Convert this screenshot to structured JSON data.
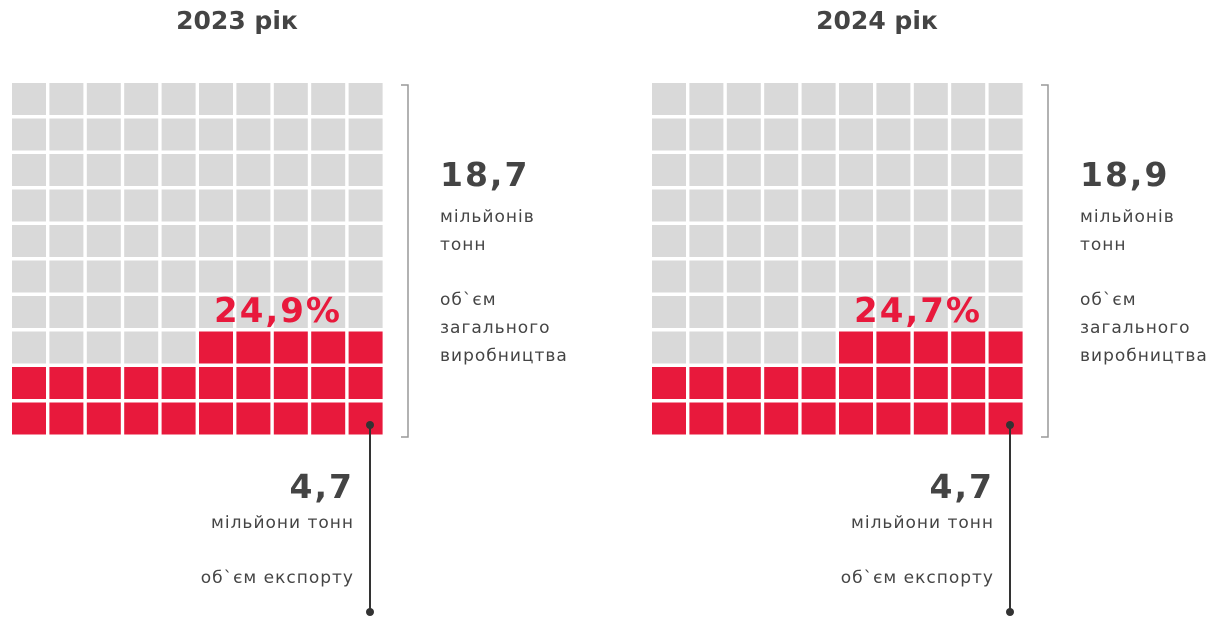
{
  "chart_data": [
    {
      "type": "waffle",
      "title": "2023 рік",
      "values": [
        24.9
      ],
      "value_labels": [
        "24,9%"
      ],
      "color": "#e8193c",
      "empty_color": "#d9d9d9",
      "total": "18,7",
      "total_unit": "мільйонів тонн",
      "total_caption": "об`єм загального виробництва",
      "export": "4,7",
      "export_unit": "мільйони тонн",
      "export_caption": "об`єм експорту"
    },
    {
      "type": "waffle",
      "title": "2024 рік",
      "values": [
        24.7
      ],
      "value_labels": [
        "24,7%"
      ],
      "color": "#e8193c",
      "empty_color": "#d9d9d9",
      "total": "18,9",
      "total_unit": "мільйонів тонн",
      "total_caption": "об`єм загального виробництва",
      "export": "4,7",
      "export_unit": "мільйони тонн",
      "export_caption": "об`єм експорту"
    }
  ]
}
